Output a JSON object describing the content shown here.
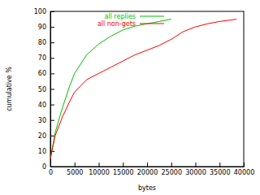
{
  "chart_data": {
    "type": "line",
    "x_label": "bytes",
    "y_label": "cumulative %",
    "xlim": [
      0,
      40000
    ],
    "xticks": [
      0,
      5000,
      10000,
      15000,
      20000,
      25000,
      30000,
      35000,
      40000
    ],
    "ylim": [
      0,
      100
    ],
    "yticks": [
      0,
      10,
      20,
      30,
      40,
      50,
      60,
      70,
      80,
      90,
      100
    ],
    "legend": "top-left",
    "series": [
      {
        "name": "all replies",
        "color": "#00c000",
        "x": [
          0,
          1000,
          2500,
          4000,
          5000,
          7500,
          10000,
          12500,
          15000,
          17500,
          20000,
          22500,
          25000
        ],
        "values": [
          5,
          22,
          38,
          52,
          60,
          72,
          79,
          84,
          88,
          90.5,
          92,
          93.5,
          95
        ]
      },
      {
        "name": "all non-gets",
        "color": "#ff0000",
        "x": [
          0,
          1000,
          2500,
          4000,
          5000,
          7500,
          10000,
          12500,
          15000,
          17500,
          20000,
          22500,
          25000,
          27500,
          30000,
          32500,
          35000,
          37500,
          38500
        ],
        "values": [
          5,
          20,
          32,
          42,
          48,
          56,
          60,
          64,
          68,
          72,
          75,
          78,
          82,
          87,
          90,
          92,
          93.5,
          94.5,
          95
        ]
      }
    ]
  }
}
